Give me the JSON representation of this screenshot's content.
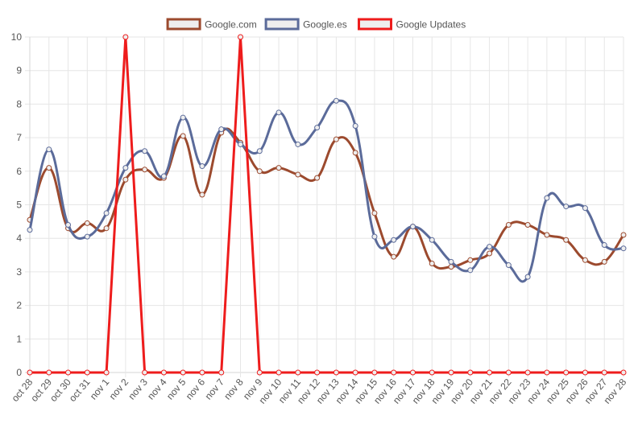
{
  "chart_data": {
    "type": "line",
    "categories": [
      "oct 28",
      "oct 29",
      "oct 30",
      "oct 31",
      "nov 1",
      "nov 2",
      "nov 3",
      "nov 4",
      "nov 5",
      "nov 6",
      "nov 7",
      "nov 8",
      "nov 9",
      "nov 10",
      "nov 11",
      "nov 12",
      "nov 13",
      "nov 14",
      "nov 15",
      "nov 16",
      "nov 17",
      "nov 18",
      "nov 19",
      "nov 20",
      "nov 21",
      "nov 22",
      "nov 23",
      "nov 24",
      "nov 25",
      "nov 26",
      "nov 27",
      "nov 28"
    ],
    "ylim": [
      0,
      10
    ],
    "yticks": [
      "0",
      "1",
      "2",
      "3",
      "4",
      "5",
      "6",
      "7",
      "8",
      "9",
      "10"
    ],
    "grid": true,
    "legend_position": "top",
    "series": [
      {
        "name": "Google.com",
        "color": "#9c4a2e",
        "smooth": true,
        "values": [
          4.55,
          6.1,
          4.3,
          4.45,
          4.3,
          5.75,
          6.05,
          5.8,
          7.05,
          5.3,
          7.15,
          6.85,
          6.0,
          6.1,
          5.9,
          5.8,
          6.95,
          6.55,
          4.75,
          3.45,
          4.35,
          3.25,
          3.15,
          3.35,
          3.55,
          4.4,
          4.4,
          4.1,
          3.95,
          3.35,
          3.3,
          4.1
        ]
      },
      {
        "name": "Google.es",
        "color": "#5b6b9a",
        "smooth": true,
        "values": [
          4.25,
          6.65,
          4.4,
          4.05,
          4.75,
          6.1,
          6.6,
          5.85,
          7.6,
          6.15,
          7.25,
          6.8,
          6.6,
          7.75,
          6.8,
          7.3,
          8.1,
          7.35,
          4.05,
          3.95,
          4.35,
          3.95,
          3.3,
          3.05,
          3.75,
          3.2,
          2.85,
          5.2,
          4.95,
          4.9,
          3.8,
          3.7
        ]
      },
      {
        "name": "Google Updates",
        "color": "#ee1c1c",
        "smooth": false,
        "values": [
          0,
          0,
          0,
          0,
          0,
          10,
          0,
          0,
          0,
          0,
          0,
          10,
          0,
          0,
          0,
          0,
          0,
          0,
          0,
          0,
          0,
          0,
          0,
          0,
          0,
          0,
          0,
          0,
          0,
          0,
          0,
          0
        ]
      }
    ]
  }
}
